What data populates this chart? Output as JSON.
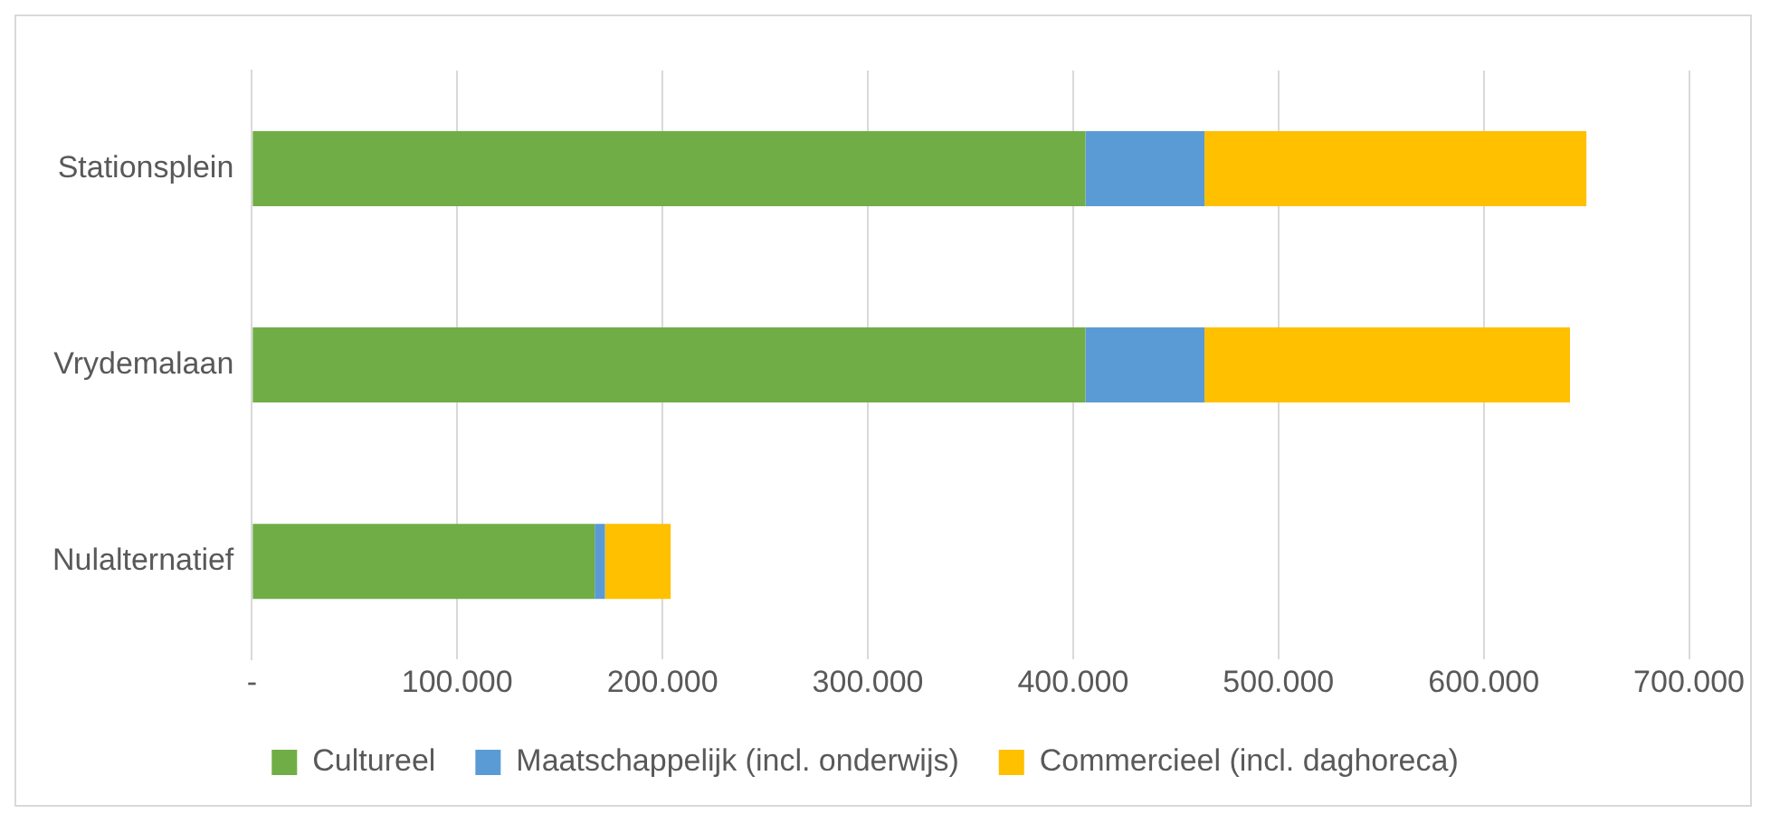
{
  "chart_data": {
    "type": "bar",
    "orientation": "horizontal",
    "stacked": true,
    "categories": [
      "Stationsplein",
      "Vrydemalaan",
      "Nulalternatief"
    ],
    "series": [
      {
        "name": "Cultureel",
        "color": "#70ad47",
        "values": [
          406000,
          406000,
          167000
        ]
      },
      {
        "name": "Maatschappelijk (incl. onderwijs)",
        "color": "#5b9bd5",
        "values": [
          58000,
          58000,
          5000
        ]
      },
      {
        "name": "Commercieel (incl. daghoreca)",
        "color": "#ffc000",
        "values": [
          186000,
          178000,
          32000
        ]
      }
    ],
    "xlim": [
      0,
      700000
    ],
    "xticks": [
      {
        "value": 0,
        "label": "-"
      },
      {
        "value": 100000,
        "label": "100.000"
      },
      {
        "value": 200000,
        "label": "200.000"
      },
      {
        "value": 300000,
        "label": "300.000"
      },
      {
        "value": 400000,
        "label": "400.000"
      },
      {
        "value": 500000,
        "label": "500.000"
      },
      {
        "value": 600000,
        "label": "600.000"
      },
      {
        "value": 700000,
        "label": "700.000"
      }
    ],
    "grid": "x",
    "legend": "bottom"
  }
}
